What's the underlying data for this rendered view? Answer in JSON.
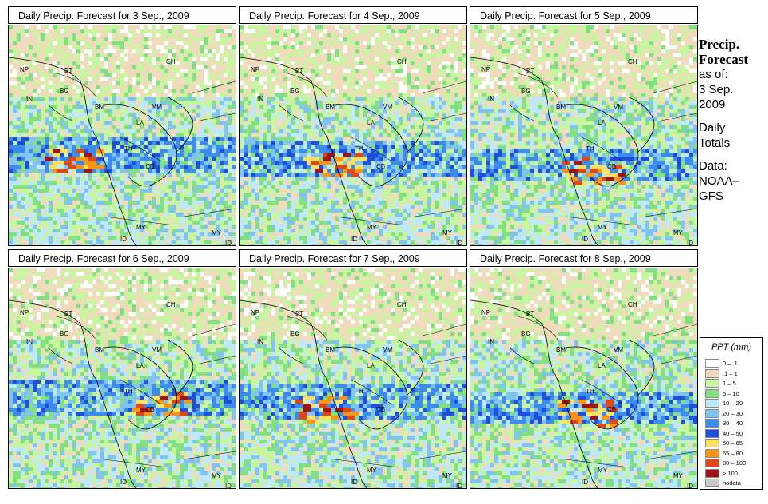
{
  "panels": [
    {
      "title": "Daily Precip. Forecast for  3 Sep., 2009",
      "seed": 11
    },
    {
      "title": "Daily Precip. Forecast for  4 Sep., 2009",
      "seed": 23
    },
    {
      "title": "Daily Precip. Forecast for  5 Sep., 2009",
      "seed": 37
    },
    {
      "title": "Daily Precip. Forecast for  6 Sep., 2009",
      "seed": 41
    },
    {
      "title": "Daily Precip. Forecast for  7 Sep., 2009",
      "seed": 53
    },
    {
      "title": "Daily Precip. Forecast for  8 Sep., 2009",
      "seed": 67
    }
  ],
  "map_labels": [
    "NP",
    "BT",
    "IN",
    "BG",
    "CH",
    "BM",
    "VM",
    "LA",
    "TH",
    "CB",
    "MY",
    "ID"
  ],
  "sidebar": {
    "heading_1": "Precip.",
    "heading_2": "Forecast",
    "as_of": "as of:",
    "date_1": "3 Sep.",
    "date_2": "2009",
    "daily_1": "Daily",
    "daily_2": "Totals",
    "data_1": "Data:",
    "data_2": "NOAA–",
    "data_3": "GFS"
  },
  "legend": {
    "title": "PPT (mm)",
    "items": [
      {
        "label": "0 – .1",
        "color": "#ffffff"
      },
      {
        "label": ".1 – 1",
        "color": "#f0dcbc"
      },
      {
        "label": "1 – 5",
        "color": "#c8f5a0"
      },
      {
        "label": "5 – 10",
        "color": "#82e082"
      },
      {
        "label": "10 – 20",
        "color": "#bfe8fa"
      },
      {
        "label": "20 – 30",
        "color": "#82c4f0"
      },
      {
        "label": "30 – 40",
        "color": "#3c8cf0"
      },
      {
        "label": "40 – 50",
        "color": "#1e50dc"
      },
      {
        "label": "50 – 65",
        "color": "#fae164"
      },
      {
        "label": "65 – 80",
        "color": "#fa9614"
      },
      {
        "label": "80 – 100",
        "color": "#e14614"
      },
      {
        "label": "> 100",
        "color": "#a01414"
      },
      {
        "label": "nodata",
        "color": "#c8c8c8"
      }
    ]
  }
}
